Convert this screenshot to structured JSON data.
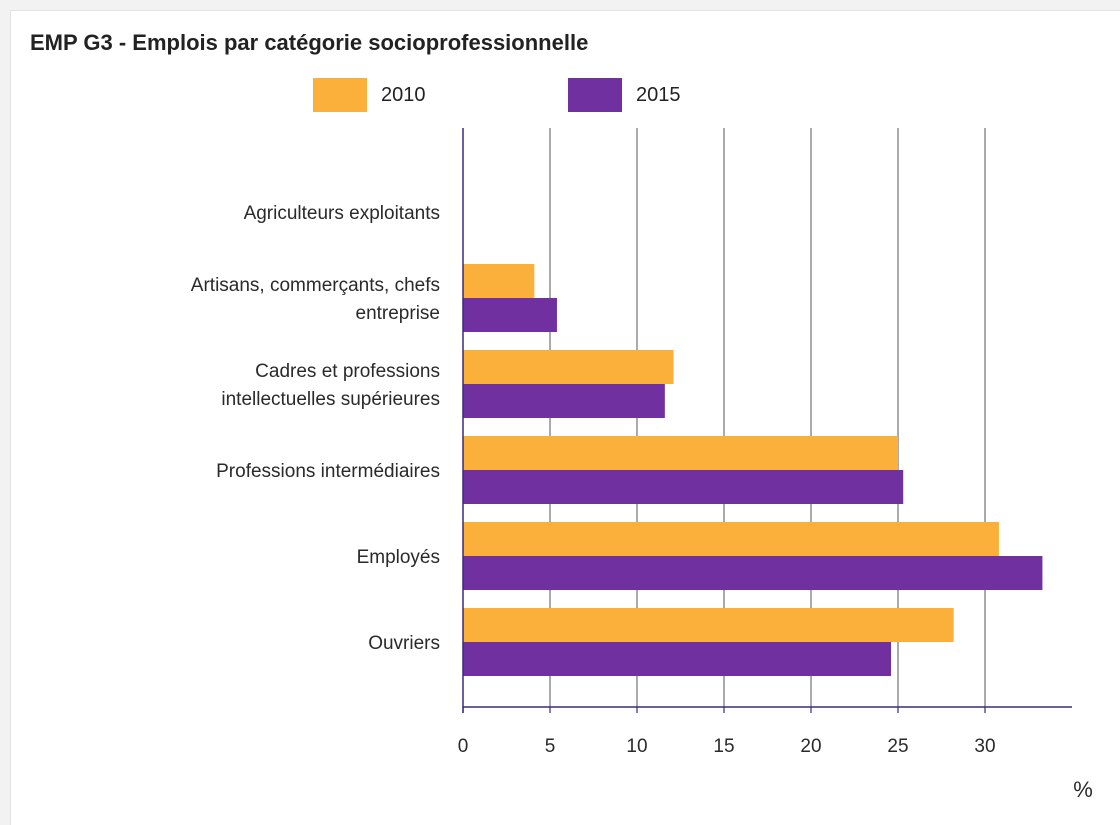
{
  "chart_data": {
    "type": "bar",
    "orientation": "horizontal",
    "title": "EMP G3 - Emplois par catégorie socioprofessionnelle",
    "categories": [
      [
        "Agriculteurs exploitants"
      ],
      [
        "Artisans, commerçants, chefs",
        "entreprise"
      ],
      [
        "Cadres et professions",
        "intellectuelles supérieures"
      ],
      [
        "Professions intermédiaires"
      ],
      [
        "Employés"
      ],
      [
        "Ouvriers"
      ]
    ],
    "series": [
      {
        "name": "2010",
        "color": "#fbb03b",
        "values": [
          0,
          4.1,
          12.1,
          25.0,
          30.8,
          28.2
        ]
      },
      {
        "name": "2015",
        "color": "#7030a0",
        "values": [
          0,
          5.4,
          11.6,
          25.3,
          33.3,
          24.6
        ]
      }
    ],
    "xlim": [
      0,
      35
    ],
    "xticks": [
      0,
      5,
      10,
      15,
      20,
      25,
      30
    ],
    "xlabel": "%",
    "grid": true,
    "legend_position": "top"
  }
}
